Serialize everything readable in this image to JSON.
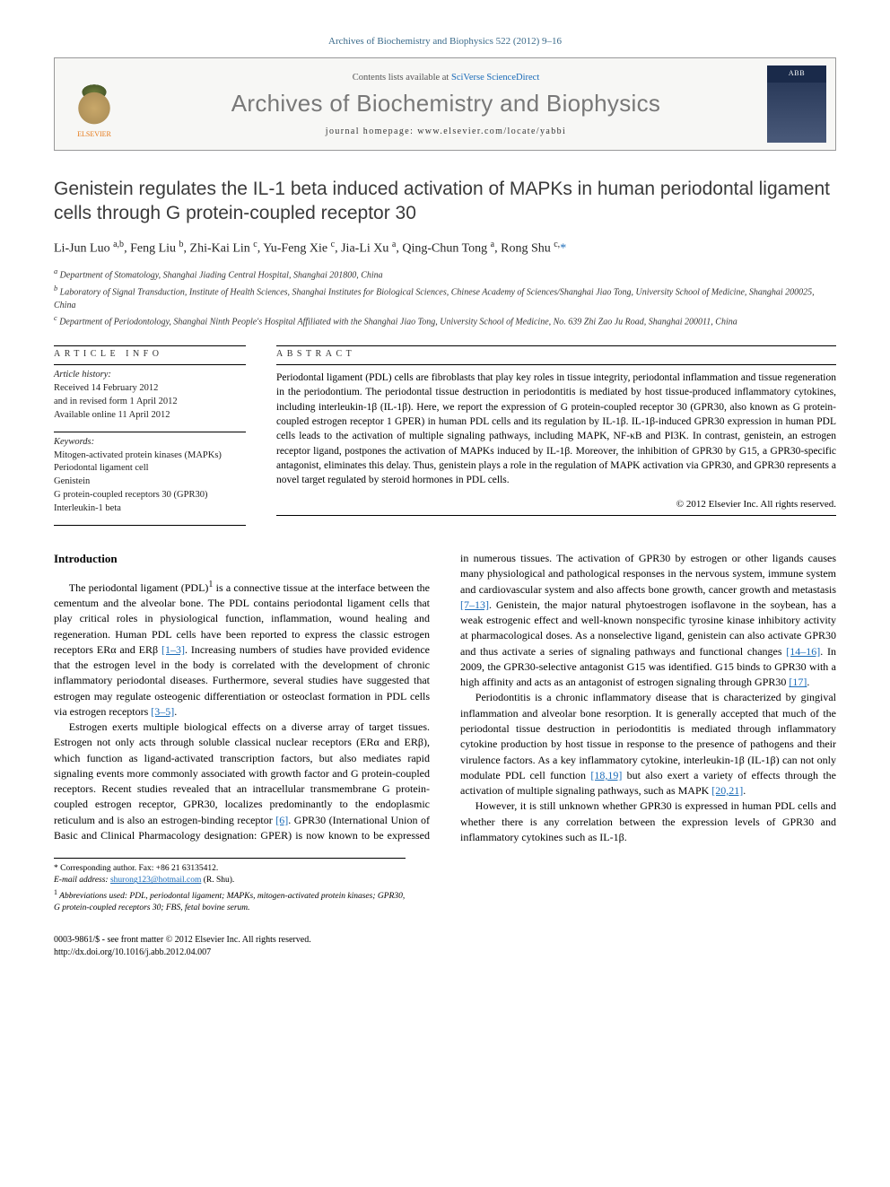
{
  "header": {
    "citation": "Archives of Biochemistry and Biophysics 522 (2012) 9–16",
    "contents_prefix": "Contents lists available at ",
    "contents_link": "SciVerse ScienceDirect",
    "journal_name": "Archives of Biochemistry and Biophysics",
    "homepage_prefix": "journal homepage: ",
    "homepage_url": "www.elsevier.com/locate/yabbi",
    "publisher_logo_text": "ELSEVIER",
    "cover_logo_text": "ABB"
  },
  "title": "Genistein regulates the IL-1 beta induced activation of MAPKs in human periodontal ligament cells through G protein-coupled receptor 30",
  "authors_html": "Li-Jun Luo <sup>a,b</sup>, Feng Liu <sup>b</sup>, Zhi-Kai Lin <sup>c</sup>, Yu-Feng Xie <sup>c</sup>, Jia-Li Xu <sup>a</sup>, Qing-Chun Tong <sup>a</sup>, Rong Shu <sup>c,</sup><span class='corr'>*</span>",
  "affiliations": [
    "a Department of Stomatology, Shanghai Jiading Central Hospital, Shanghai 201800, China",
    "b Laboratory of Signal Transduction, Institute of Health Sciences, Shanghai Institutes for Biological Sciences, Chinese Academy of Sciences/Shanghai Jiao Tong, University School of Medicine, Shanghai 200025, China",
    "c Department of Periodontology, Shanghai Ninth People's Hospital Affiliated with the Shanghai Jiao Tong, University School of Medicine, No. 639 Zhi Zao Ju Road, Shanghai 200011, China"
  ],
  "article_info": {
    "heading": "ARTICLE INFO",
    "history_label": "Article history:",
    "history_lines": [
      "Received 14 February 2012",
      "and in revised form 1 April 2012",
      "Available online 11 April 2012"
    ],
    "keywords_label": "Keywords:",
    "keywords": [
      "Mitogen-activated protein kinases (MAPKs)",
      "Periodontal ligament cell",
      "Genistein",
      "G protein-coupled receptors 30 (GPR30)",
      "Interleukin-1 beta"
    ]
  },
  "abstract": {
    "heading": "ABSTRACT",
    "text": "Periodontal ligament (PDL) cells are fibroblasts that play key roles in tissue integrity, periodontal inflammation and tissue regeneration in the periodontium. The periodontal tissue destruction in periodontitis is mediated by host tissue-produced inflammatory cytokines, including interleukin-1β (IL-1β). Here, we report the expression of G protein-coupled receptor 30 (GPR30, also known as G protein-coupled estrogen receptor 1 GPER) in human PDL cells and its regulation by IL-1β. IL-1β-induced GPR30 expression in human PDL cells leads to the activation of multiple signaling pathways, including MAPK, NF-κB and PI3K. In contrast, genistein, an estrogen receptor ligand, postpones the activation of MAPKs induced by IL-1β. Moreover, the inhibition of GPR30 by G15, a GPR30-specific antagonist, eliminates this delay. Thus, genistein plays a role in the regulation of MAPK activation via GPR30, and GPR30 represents a novel target regulated by steroid hormones in PDL cells.",
    "copyright": "© 2012 Elsevier Inc. All rights reserved."
  },
  "body": {
    "intro_heading": "Introduction",
    "p1_a": "The periodontal ligament (PDL)",
    "p1_sup": "1",
    "p1_b": " is a connective tissue at the interface between the cementum and the alveolar bone. The PDL contains periodontal ligament cells that play critical roles in physiological function, inflammation, wound healing and regeneration. Human PDL cells have been reported to express the classic estrogen receptors ERα and ERβ ",
    "p1_ref1": "[1–3]",
    "p1_c": ". Increasing numbers of studies have provided evidence that the estrogen level in the body is correlated with the development of chronic inflammatory periodontal diseases. Furthermore, several studies have suggested that estrogen may regulate osteogenic differentiation or osteoclast formation in PDL cells via estrogen receptors ",
    "p1_ref2": "[3–5]",
    "p1_d": ".",
    "p2_a": "Estrogen exerts multiple biological effects on a diverse array of target tissues. Estrogen not only acts through soluble classical nuclear receptors (ERα and ERβ), which function as ligand-activated transcription factors, but also mediates rapid signaling events more commonly associated with growth factor and G protein-coupled receptors. Recent studies revealed that an intracellular transmembrane G protein-coupled estrogen receptor, GPR30, localizes predominantly to the endoplasmic reticulum and is also an estrogen-binding receptor ",
    "p2_ref1": "[6]",
    "p2_b": ". GPR30 (International Union of Basic and Clinical Pharmacology designation: GPER) is now known to be expressed in numerous tissues. The activation of GPR30 by estrogen or other ligands causes many physiological and pathological responses in the nervous system, immune system and cardiovascular system and also affects bone growth, cancer growth and metastasis ",
    "p2_ref2": "[7–13]",
    "p2_c": ". Genistein, the major natural phytoestrogen isoflavone in the soybean, has a weak estrogenic effect and well-known nonspecific tyrosine kinase inhibitory activity at pharmacological doses. As a nonselective ligand, genistein can also activate GPR30 and thus activate a series of signaling pathways and functional changes ",
    "p2_ref3": "[14–16]",
    "p2_d": ". In 2009, the GPR30-selective antagonist G15 was identified. G15 binds to GPR30 with a high affinity and acts as an antagonist of estrogen signaling through GPR30 ",
    "p2_ref4": "[17]",
    "p2_e": ".",
    "p3_a": "Periodontitis is a chronic inflammatory disease that is characterized by gingival inflammation and alveolar bone resorption. It is generally accepted that much of the periodontal tissue destruction in periodontitis is mediated through inflammatory cytokine production by host tissue in response to the presence of pathogens and their virulence factors. As a key inflammatory cytokine, interleukin-1β (IL-1β) can not only modulate PDL cell function ",
    "p3_ref1": "[18,19]",
    "p3_b": " but also exert a variety of effects through the activation of multiple signaling pathways, such as MAPK ",
    "p3_ref2": "[20,21]",
    "p3_c": ".",
    "p4": "However, it is still unknown whether GPR30 is expressed in human PDL cells and whether there is any correlation between the expression levels of GPR30 and inflammatory cytokines such as IL-1β."
  },
  "footnotes": {
    "corr_label": "* Corresponding author. Fax: +86 21 63135412.",
    "email_label": "E-mail address: ",
    "email": "shurong123@hotmail.com",
    "email_suffix": " (R. Shu).",
    "abbrev_label": "1",
    "abbrev_text": " Abbreviations used: PDL, periodontal ligament; MAPKs, mitogen-activated protein kinases; GPR30, G protein-coupled receptors 30; FBS, fetal bovine serum."
  },
  "footer": {
    "issn_line": "0003-9861/$ - see front matter © 2012 Elsevier Inc. All rights reserved.",
    "doi": "http://dx.doi.org/10.1016/j.abb.2012.04.007"
  },
  "colors": {
    "link": "#1a6bb8",
    "journal_name": "#787878",
    "elsevier_orange": "#e67817",
    "text": "#000000",
    "border": "#000000"
  },
  "typography": {
    "title_fontsize": 21,
    "body_fontsize": 12,
    "abstract_fontsize": 11.5,
    "journal_fontsize": 26
  }
}
